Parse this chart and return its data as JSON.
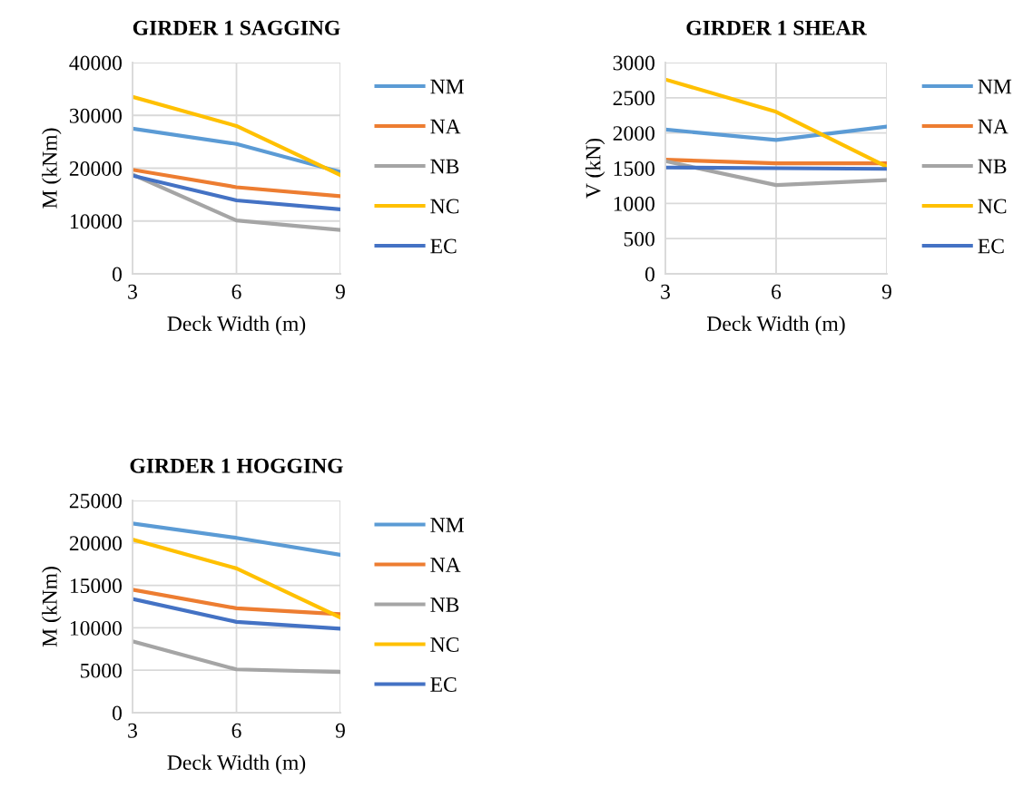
{
  "chart_data": [
    {
      "type": "line",
      "title": "GIRDER 1 SAGGING",
      "xlabel": "Deck Width (m)",
      "ylabel": "M (kNm)",
      "x": [
        3,
        6,
        9
      ],
      "xlim": [
        3,
        9
      ],
      "xticks": [
        3,
        6,
        9
      ],
      "ylim": [
        0,
        40000
      ],
      "yticks": [
        0,
        10000,
        20000,
        30000,
        40000
      ],
      "grid": true,
      "legend": "right",
      "series": [
        {
          "name": "NM",
          "color": "#5b9bd5",
          "values": [
            27500,
            24600,
            19300
          ]
        },
        {
          "name": "NA",
          "color": "#ed7d31",
          "values": [
            19700,
            16400,
            14700
          ]
        },
        {
          "name": "NB",
          "color": "#a5a5a5",
          "values": [
            18800,
            10100,
            8300
          ]
        },
        {
          "name": "NC",
          "color": "#ffc000",
          "values": [
            33500,
            28000,
            18700
          ]
        },
        {
          "name": "EC",
          "color": "#4472c4",
          "values": [
            18600,
            13900,
            12200
          ]
        }
      ]
    },
    {
      "type": "line",
      "title": "GIRDER 1 SHEAR",
      "xlabel": "Deck Width (m)",
      "ylabel": "V (kN)",
      "x": [
        3,
        6,
        9
      ],
      "xlim": [
        3,
        9
      ],
      "xticks": [
        3,
        6,
        9
      ],
      "ylim": [
        0,
        3000
      ],
      "yticks": [
        0,
        500,
        1000,
        1500,
        2000,
        2500,
        3000
      ],
      "grid": true,
      "legend": "right",
      "series": [
        {
          "name": "NM",
          "color": "#5b9bd5",
          "values": [
            2050,
            1900,
            2090
          ]
        },
        {
          "name": "NA",
          "color": "#ed7d31",
          "values": [
            1620,
            1570,
            1570
          ]
        },
        {
          "name": "NB",
          "color": "#a5a5a5",
          "values": [
            1600,
            1260,
            1330
          ]
        },
        {
          "name": "NC",
          "color": "#ffc000",
          "values": [
            2760,
            2300,
            1520
          ]
        },
        {
          "name": "EC",
          "color": "#4472c4",
          "values": [
            1510,
            1500,
            1490
          ]
        }
      ]
    },
    {
      "type": "line",
      "title": "GIRDER 1 HOGGING",
      "xlabel": "Deck Width (m)",
      "ylabel": "M (kNm)",
      "x": [
        3,
        6,
        9
      ],
      "xlim": [
        3,
        9
      ],
      "xticks": [
        3,
        6,
        9
      ],
      "ylim": [
        0,
        25000
      ],
      "yticks": [
        0,
        5000,
        10000,
        15000,
        20000,
        25000
      ],
      "grid": true,
      "legend": "right",
      "series": [
        {
          "name": "NM",
          "color": "#5b9bd5",
          "values": [
            22300,
            20600,
            18600
          ]
        },
        {
          "name": "NA",
          "color": "#ed7d31",
          "values": [
            14500,
            12300,
            11600
          ]
        },
        {
          "name": "NB",
          "color": "#a5a5a5",
          "values": [
            8400,
            5100,
            4800
          ]
        },
        {
          "name": "NC",
          "color": "#ffc000",
          "values": [
            20400,
            17000,
            11200
          ]
        },
        {
          "name": "EC",
          "color": "#4472c4",
          "values": [
            13400,
            10700,
            9900
          ]
        }
      ]
    }
  ]
}
